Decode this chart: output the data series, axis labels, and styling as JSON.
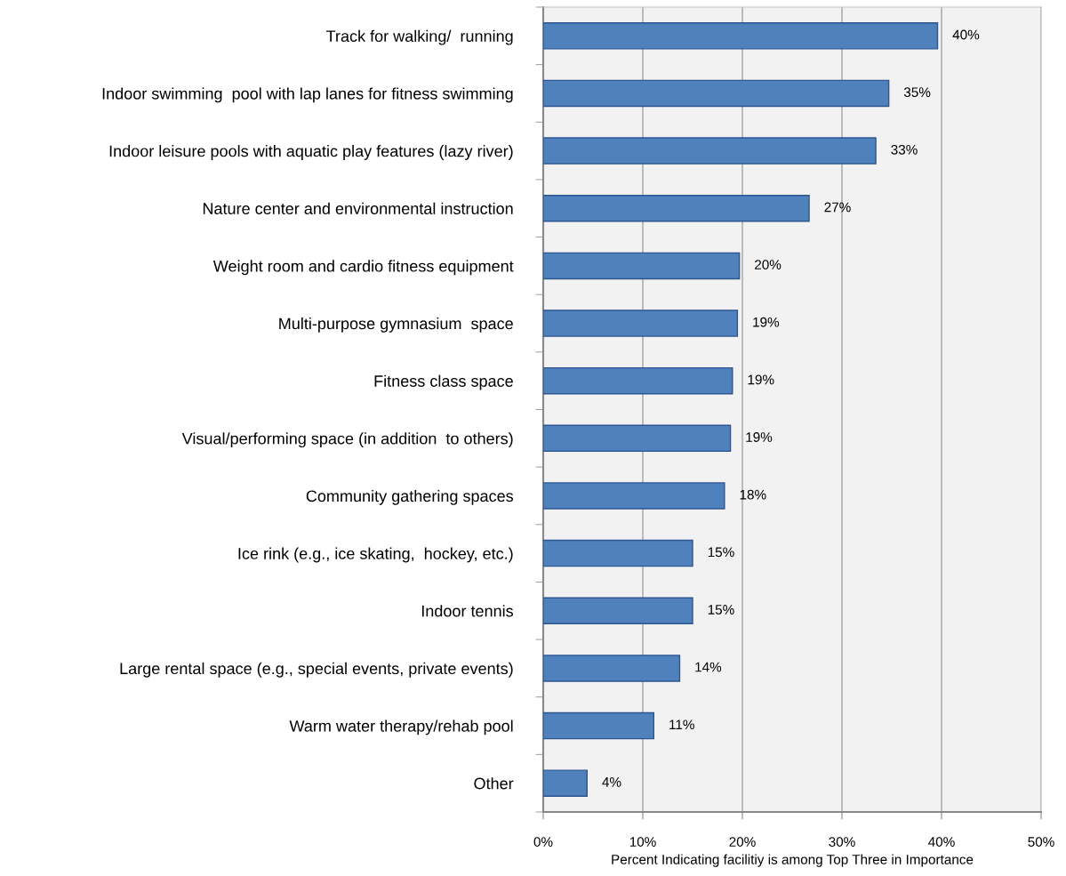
{
  "chart_data": {
    "type": "bar",
    "orientation": "horizontal",
    "xlabel": "Percent Indicating facilitiy is among Top Three in Importance",
    "categories": [
      "Track for walking/  running",
      "Indoor swimming  pool with lap lanes for fitness swimming",
      "Indoor leisure pools with aquatic play features (lazy river)",
      "Nature center and environmental instruction",
      "Weight room and cardio fitness equipment",
      "Multi-purpose gymnasium  space",
      "Fitness class space",
      "Visual/performing space (in addition  to others)",
      "Community gathering spaces",
      "Ice rink (e.g., ice skating,  hockey, etc.)",
      "Indoor tennis",
      "Large rental space (e.g., special events, private events)",
      "Warm water therapy/rehab pool",
      "Other"
    ],
    "values": [
      39.6,
      34.7,
      33.4,
      26.7,
      19.7,
      19.5,
      19.0,
      18.8,
      18.2,
      15.0,
      15.0,
      13.7,
      11.1,
      4.4
    ],
    "value_labels": [
      "40%",
      "35%",
      "33%",
      "27%",
      "20%",
      "19%",
      "19%",
      "19%",
      "18%",
      "15%",
      "15%",
      "14%",
      "11%",
      "4%"
    ],
    "color": "#4f81bd",
    "xlim": [
      0,
      50
    ],
    "xticks": [
      {
        "value": 0,
        "label": "0%"
      },
      {
        "value": 10,
        "label": "10%"
      },
      {
        "value": 20,
        "label": "20%"
      },
      {
        "value": 30,
        "label": "30%"
      },
      {
        "value": 40,
        "label": "40%"
      },
      {
        "value": 50,
        "label": "50%"
      }
    ],
    "grid": "x"
  }
}
